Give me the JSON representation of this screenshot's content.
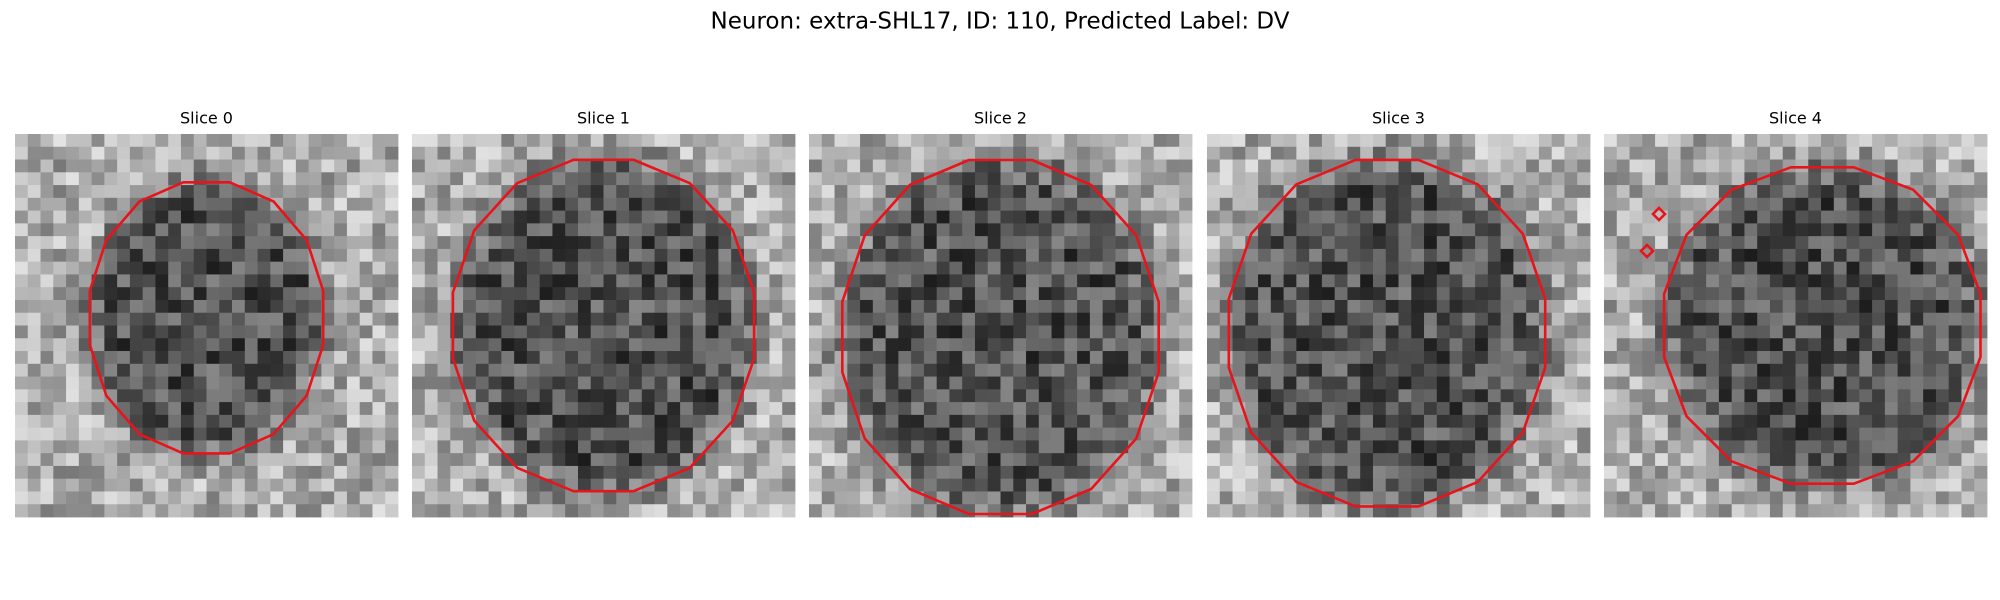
{
  "header": {
    "title": "Neuron: extra-SHL17, ID: 110, Predicted Label: DV"
  },
  "panels": [
    {
      "title": "Slice 0"
    },
    {
      "title": "Slice 1"
    },
    {
      "title": "Slice 2"
    },
    {
      "title": "Slice 3"
    },
    {
      "title": "Slice 4"
    }
  ]
}
